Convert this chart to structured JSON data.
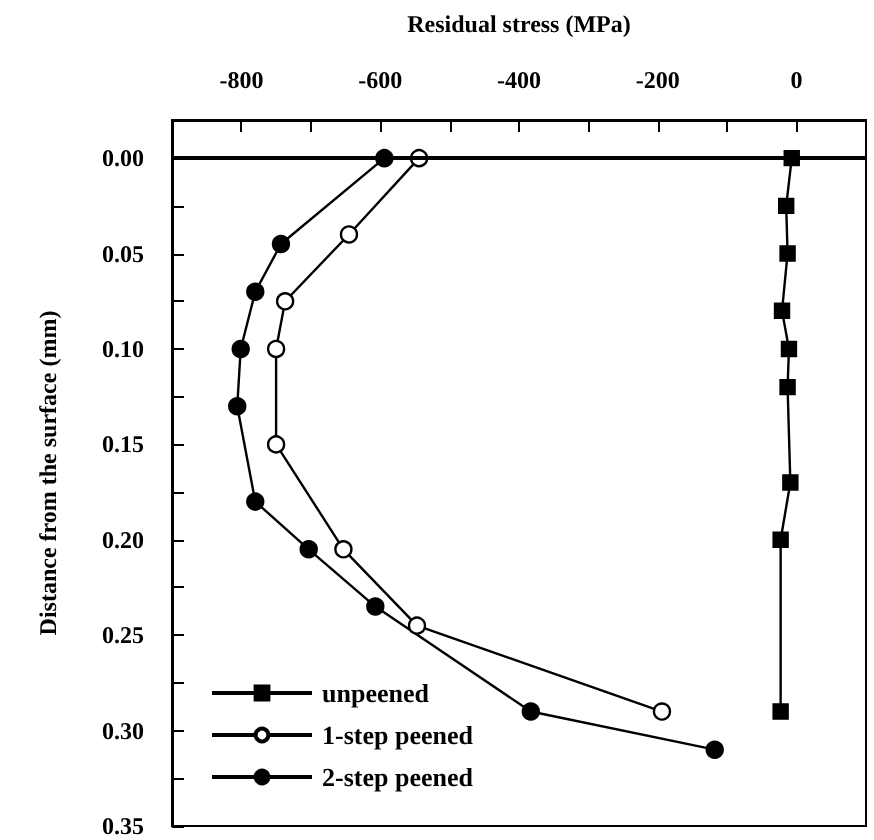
{
  "chart_data": {
    "type": "line",
    "xlabel": "Residual stress (MPa)",
    "ylabel": "Distance from the surface (mm)",
    "xlim": [
      -900,
      100
    ],
    "xticks": [
      {
        "value": -800,
        "label": "-800"
      },
      {
        "value": -700,
        "label": null
      },
      {
        "value": -600,
        "label": "-600"
      },
      {
        "value": -500,
        "label": null
      },
      {
        "value": -400,
        "label": "-400"
      },
      {
        "value": -300,
        "label": null
      },
      {
        "value": -200,
        "label": "-200"
      },
      {
        "value": -100,
        "label": null
      },
      {
        "value": 0,
        "label": "0"
      }
    ],
    "ylim": [
      0.35,
      -0.02
    ],
    "yticks": [
      {
        "value": 0,
        "label": "0.00"
      },
      {
        "value": 0.025,
        "label": null
      },
      {
        "value": 0.05,
        "label": "0.05"
      },
      {
        "value": 0.075,
        "label": null
      },
      {
        "value": 0.1,
        "label": "0.10"
      },
      {
        "value": 0.125,
        "label": null
      },
      {
        "value": 0.15,
        "label": "0.15"
      },
      {
        "value": 0.175,
        "label": null
      },
      {
        "value": 0.2,
        "label": "0.20"
      },
      {
        "value": 0.225,
        "label": null
      },
      {
        "value": 0.25,
        "label": "0.25"
      },
      {
        "value": 0.275,
        "label": null
      },
      {
        "value": 0.3,
        "label": "0.30"
      },
      {
        "value": 0.325,
        "label": null
      },
      {
        "value": 0.35,
        "label": "0.35"
      }
    ],
    "ref_lines": [
      {
        "axis": "y",
        "value": 0,
        "color": "#000000"
      }
    ],
    "legend": "bottom left",
    "grid": false,
    "series": [
      {
        "name": "unpeened",
        "color": "#000000",
        "marker": "square",
        "x": [
          -7,
          -15,
          -13,
          -21,
          -11,
          -13,
          -9,
          -23,
          -23
        ],
        "values": [
          0,
          0.025,
          0.05,
          0.08,
          0.1,
          0.12,
          0.17,
          0.2,
          0.29
        ]
      },
      {
        "name": "1-step peened",
        "color": "#ffffff",
        "marker": "circle",
        "x": [
          -544,
          -645,
          -737,
          -750,
          -750,
          -653,
          -547,
          -194
        ],
        "values": [
          0,
          0.04,
          0.075,
          0.1,
          0.15,
          0.205,
          0.245,
          0.29
        ]
      },
      {
        "name": "2-step peened",
        "color": "#000000",
        "marker": "circle",
        "x": [
          -594,
          -743,
          -780,
          -801,
          -806,
          -780,
          -703,
          -607,
          -383,
          -118
        ],
        "values": [
          0,
          0.045,
          0.07,
          0.1,
          0.13,
          0.18,
          0.205,
          0.235,
          0.29,
          0.31
        ]
      }
    ]
  }
}
